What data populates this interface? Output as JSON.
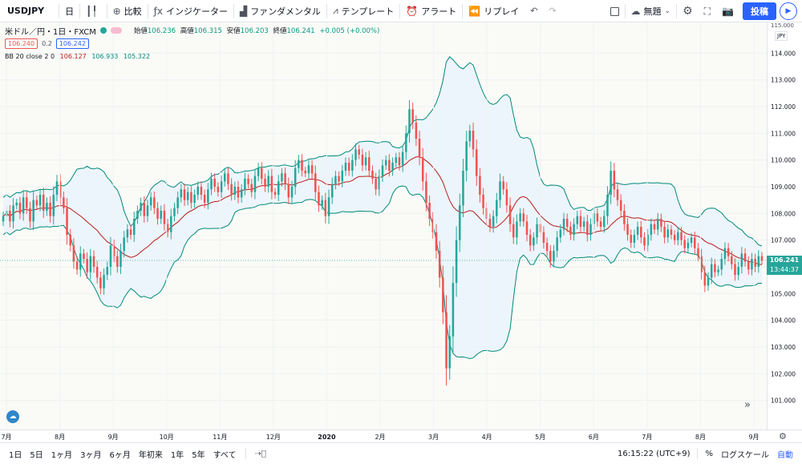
{
  "toolbar": {
    "symbol": "USDJPY",
    "interval": "日",
    "compare": "比較",
    "indicators": "インジケーター",
    "fundamentals": "ファンダメンタル",
    "templates": "テンプレート",
    "alert": "アラート",
    "replay": "リプレイ",
    "layout_name": "無題",
    "publish": "投稿"
  },
  "legend": {
    "title": "米ドル／円・1日・FXCM",
    "open_label": "始値",
    "open": "106.236",
    "high_label": "高値",
    "high": "106.315",
    "low_label": "安値",
    "low": "106.203",
    "close_label": "終値",
    "close": "106.241",
    "change": "+0.005 (+0.00%)",
    "sell_price": "106.240",
    "spread": "0.2",
    "buy_price": "106.242",
    "bb_label": "BB 20 close 2 0",
    "bb_basis": "106.127",
    "bb_upper": "106.933",
    "bb_lower": "105.322"
  },
  "price_axis": {
    "top_label": "115.000",
    "currency": "JPY",
    "last_price": "106.241",
    "countdown": "13:44:37"
  },
  "time_axis": [
    "7月",
    "8月",
    "9月",
    "10月",
    "11月",
    "12月",
    "2020",
    "2月",
    "3月",
    "4月",
    "5月",
    "6月",
    "7月",
    "8月",
    "9月"
  ],
  "bottom": {
    "ranges": [
      "1日",
      "5日",
      "1ヶ月",
      "3ヶ月",
      "6ヶ月",
      "年初来",
      "1年",
      "5年",
      "すべて"
    ],
    "time": "16:15:22 (UTC+9)",
    "percent": "%",
    "log_scale": "ログスケール",
    "auto": "自動"
  },
  "colors": {
    "up": "#26a69a",
    "down": "#ef5350",
    "bb_basis": "#b71c1c",
    "bb_band": "#00897b",
    "bb_fill": "#e8f4fb",
    "accent": "#2962ff"
  },
  "chart_data": {
    "type": "candlestick",
    "symbol": "USDJPY",
    "ylim": [
      100,
      115
    ],
    "y_ticks": [
      101,
      102,
      103,
      104,
      105,
      106,
      107,
      108,
      109,
      110,
      111,
      112,
      113,
      114
    ],
    "x_labels": [
      "7月",
      "8月",
      "9月",
      "10月",
      "11月",
      "12月",
      "2020",
      "2月",
      "3月",
      "4月",
      "5月",
      "6月",
      "7月",
      "8月",
      "9月"
    ],
    "close": [
      107.9,
      108.1,
      107.7,
      108.3,
      108.4,
      108.0,
      108.6,
      108.2,
      107.7,
      108.5,
      108.3,
      108.7,
      108.1,
      108.4,
      107.9,
      108.7,
      109.2,
      108.6,
      108.2,
      107.2,
      106.8,
      106.2,
      105.9,
      106.5,
      106.3,
      105.8,
      106.4,
      106.0,
      105.6,
      105.2,
      105.7,
      106.0,
      106.8,
      106.4,
      106.0,
      106.6,
      107.1,
      107.4,
      107.2,
      107.8,
      108.1,
      108.4,
      107.9,
      108.3,
      108.6,
      108.2,
      107.8,
      108.1,
      107.6,
      107.3,
      107.9,
      108.2,
      108.6,
      108.9,
      108.5,
      108.8,
      108.4,
      108.7,
      109.0,
      108.7,
      108.4,
      108.9,
      109.3,
      109.0,
      108.8,
      109.2,
      109.5,
      109.1,
      108.7,
      109.0,
      108.6,
      108.9,
      109.3,
      109.1,
      108.8,
      109.4,
      109.7,
      109.3,
      109.0,
      109.4,
      108.8,
      108.7,
      109.2,
      109.5,
      109.1,
      108.6,
      109.0,
      109.7,
      110.0,
      109.6,
      109.5,
      109.8,
      109.5,
      108.8,
      108.3,
      108.5,
      107.9,
      108.6,
      109.1,
      109.4,
      109.2,
      109.6,
      109.9,
      109.6,
      110.0,
      110.4,
      110.2,
      109.8,
      110.1,
      109.6,
      109.3,
      108.9,
      109.4,
      109.8,
      110.0,
      109.6,
      109.9,
      110.1,
      109.8,
      110.3,
      111.0,
      111.9,
      111.4,
      110.8,
      110.1,
      109.2,
      108.4,
      107.8,
      107.3,
      106.6,
      105.6,
      104.3,
      102.2,
      103.4,
      105.4,
      107.0,
      108.3,
      109.6,
      110.7,
      111.1,
      110.4,
      109.4,
      108.7,
      108.2,
      107.8,
      107.5,
      107.9,
      108.5,
      109.2,
      108.9,
      108.3,
      107.6,
      107.1,
      107.7,
      108.0,
      107.7,
      107.2,
      106.8,
      107.1,
      107.6,
      107.3,
      106.9,
      106.6,
      106.2,
      106.6,
      107.1,
      107.4,
      107.8,
      107.5,
      107.2,
      107.6,
      107.9,
      107.5,
      107.7,
      107.2,
      107.6,
      108.0,
      107.7,
      107.5,
      107.9,
      108.7,
      109.6,
      108.9,
      108.5,
      108.1,
      107.6,
      107.2,
      106.9,
      107.2,
      107.5,
      107.1,
      106.8,
      107.2,
      107.6,
      107.4,
      107.8,
      107.5,
      107.1,
      107.4,
      107.2,
      107.0,
      107.3,
      107.0,
      106.7,
      106.9,
      107.1,
      106.7,
      106.4,
      105.8,
      105.3,
      105.6,
      106.1,
      105.8,
      105.9,
      106.3,
      106.7,
      106.4,
      106.1,
      105.7,
      106.0,
      106.5,
      106.2,
      105.9,
      106.3,
      106.0,
      106.4,
      106.241
    ]
  }
}
